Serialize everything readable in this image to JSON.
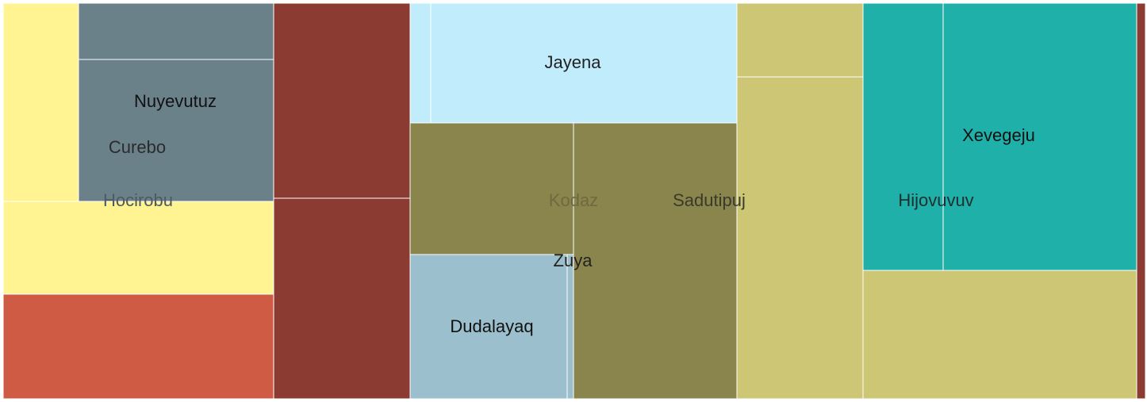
{
  "chart_data": {
    "type": "treemap",
    "title": "",
    "labels": [
      "Nuyevutuz",
      "Curebo",
      "Hocirobu",
      "Jayena",
      "Kodaz",
      "Sadutipuj",
      "Zuya",
      "Dudalayaq",
      "Hijovuvuv",
      "Xevegeju"
    ],
    "tiles": [
      {
        "name": "yellow-left-strip",
        "value": 2.4,
        "color": "#fff491"
      },
      {
        "name": "slate-top",
        "value": 1.75,
        "color": "#6b8189"
      },
      {
        "name": "slate-main",
        "value": 4.4,
        "color": "#6b8189"
      },
      {
        "name": "yellow-band",
        "value": 3.9,
        "color": "#fff491"
      },
      {
        "name": "coral-block",
        "value": 4.5,
        "color": "#cf5b45"
      },
      {
        "name": "maroon-top",
        "value": 4.2,
        "color": "#8b3b31"
      },
      {
        "name": "maroon-bottom",
        "value": 4.35,
        "color": "#8b3b31"
      },
      {
        "name": "lightblue-strip",
        "value": 0.4,
        "color": "#c0ecfb"
      },
      {
        "name": "lightblue-main",
        "value": 5.8,
        "color": "#c0ecfb"
      },
      {
        "name": "olive-left",
        "value": 3.4,
        "color": "#8a854c"
      },
      {
        "name": "olive-right",
        "value": 8.3,
        "color": "#8a854c"
      },
      {
        "name": "steelblue-block",
        "value": 3.6,
        "color": "#9bbfcd"
      },
      {
        "name": "steelblue-sliver",
        "value": 0.15,
        "color": "#9bbfcd"
      },
      {
        "name": "khaki-top",
        "value": 1.5,
        "color": "#cdc674"
      },
      {
        "name": "khaki-tall",
        "value": 6.4,
        "color": "#cdc674"
      },
      {
        "name": "teal-left",
        "value": 3.4,
        "color": "#20b0aa"
      },
      {
        "name": "teal-right",
        "value": 8.2,
        "color": "#20b0aa"
      },
      {
        "name": "khaki-bottom",
        "value": 5.6,
        "color": "#cdc674"
      },
      {
        "name": "maroon-edge",
        "value": 0.5,
        "color": "#8b3b31"
      }
    ],
    "label_colors": {
      "Nuyevutuz": "#111111",
      "Curebo": "#2b2b2b",
      "Hocirobu": "#4d5a60",
      "Jayena": "#222222",
      "Kodaz": "#6e6a40",
      "Sadutipuj": "#3a3a2a",
      "Zuya": "#222222",
      "Dudalayaq": "#111111",
      "Hijovuvuv": "#1d2f2e",
      "Xevegeju": "#111111"
    }
  }
}
